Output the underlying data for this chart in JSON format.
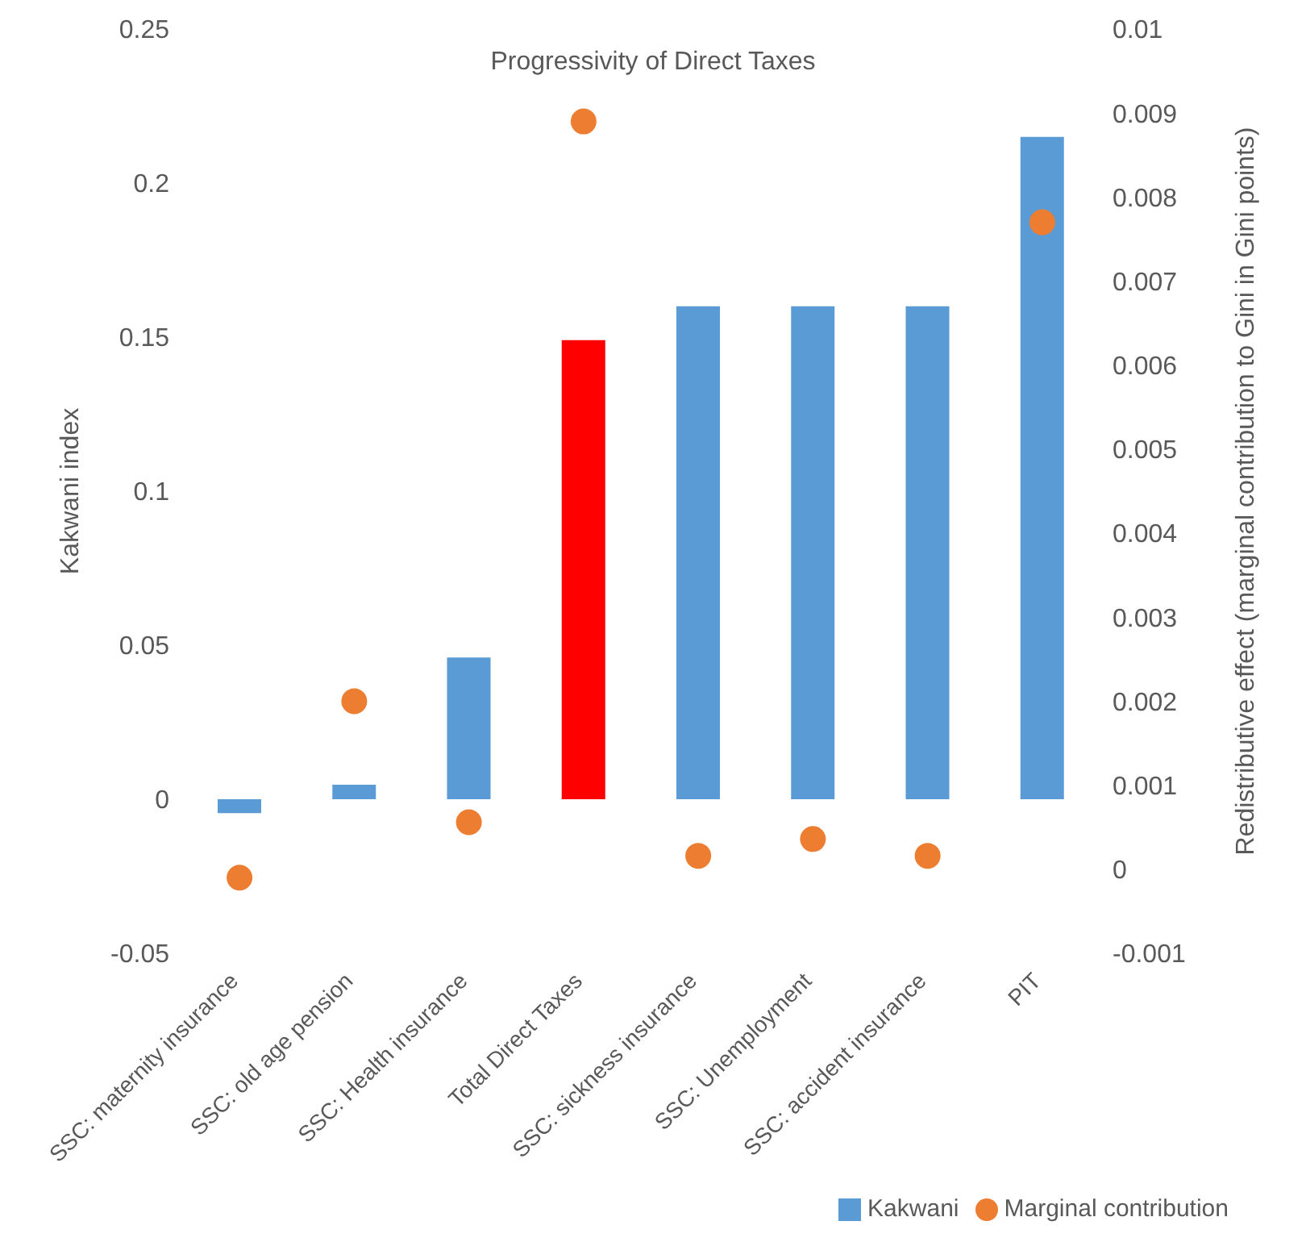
{
  "chart_data": {
    "type": "bar",
    "title": "Progressivity of Direct Taxes",
    "ylabel": "Kakwani index",
    "y2label": "Redistributive effect (marginal contribution to Gini in Gini points)",
    "categories": [
      "SSC: maternity insurance",
      "SSC: old age pension",
      "SSC: Health insurance",
      "Total Direct Taxes",
      "SSC: sickness insurance",
      "SSC: Unemployment",
      "SSC: accident insurance",
      "PIT"
    ],
    "series": [
      {
        "name": "Kakwani",
        "color": "#5b9bd5",
        "colors": [
          "#5b9bd5",
          "#5b9bd5",
          "#5b9bd5",
          "#ff0000",
          "#5b9bd5",
          "#5b9bd5",
          "#5b9bd5",
          "#5b9bd5"
        ],
        "values": [
          -0.0045,
          0.0047,
          0.046,
          0.149,
          0.16,
          0.16,
          0.16,
          0.215
        ]
      },
      {
        "name": "Marginal contribution",
        "type": "scatter",
        "axis": "y2",
        "color": "#ed7d31",
        "marker": "circle",
        "values": [
          -0.0001,
          0.002,
          0.00056,
          0.0089,
          0.00016,
          0.00036,
          0.00016,
          0.0077
        ]
      }
    ],
    "ylim": [
      -0.05,
      0.25
    ],
    "yticks": [
      -0.05,
      0,
      0.05,
      0.1,
      0.15,
      0.2,
      0.25
    ],
    "y2lim": [
      -0.001,
      0.01
    ],
    "y2ticks": [
      -0.001,
      0,
      0.001,
      0.002,
      0.003,
      0.004,
      0.005,
      0.006,
      0.007,
      0.008,
      0.009,
      0.01
    ],
    "grid": false,
    "legend": "bottom right"
  }
}
